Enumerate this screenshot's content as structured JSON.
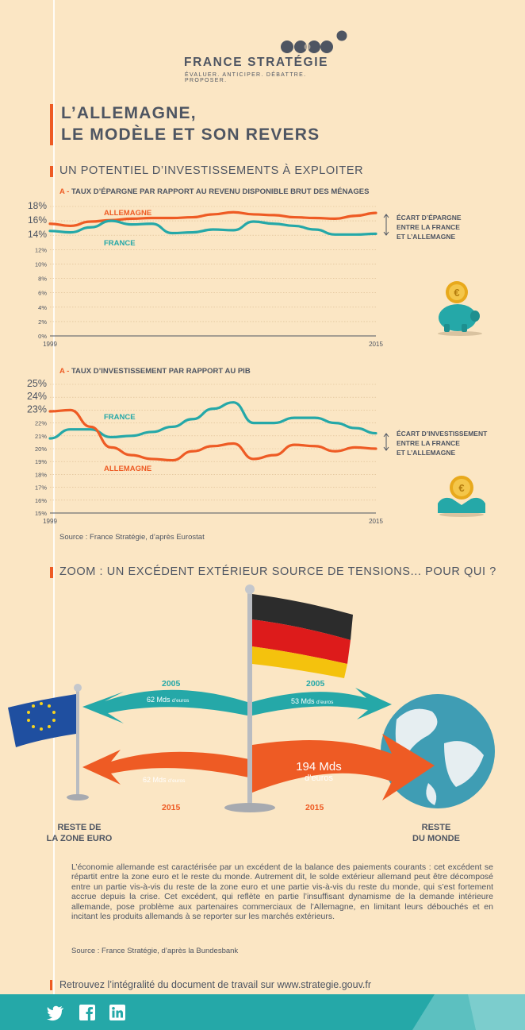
{
  "logo": {
    "name": "FRANCE STRATÉGIE",
    "tagline": "ÉVALUER. ANTICIPER. DÉBATTRE. PROPOSER."
  },
  "title": {
    "line1": "L’ALLEMAGNE,",
    "line2": "LE MODÈLE ET SON REVERS"
  },
  "section1": {
    "title": "UN POTENTIEL D’INVESTISSEMENTS À EXPLOITER"
  },
  "chart_data": [
    {
      "type": "line",
      "prefix": "A -",
      "title": "TAUX D’ÉPARGNE PAR RAPPORT AU REVENU DISPONIBLE BRUT DES MÉNAGES",
      "x_range": [
        1999,
        2015
      ],
      "x_tick_labels": [
        "1999",
        "2015"
      ],
      "y_range": [
        0,
        18
      ],
      "y_tick_labels": [
        "0%",
        "2%",
        "4%",
        "6%",
        "8%",
        "10%",
        "12%",
        "14%",
        "16%",
        "18%"
      ],
      "series": [
        {
          "name": "ALLEMAGNE",
          "color": "#ee5b24",
          "values": [
            15.6,
            15.3,
            15.9,
            16.1,
            16.3,
            16.4,
            16.4,
            16.5,
            16.9,
            17.2,
            16.9,
            16.8,
            16.5,
            16.4,
            16.3,
            16.7,
            17.1
          ]
        },
        {
          "name": "FRANCE",
          "color": "#25a8a8",
          "values": [
            14.6,
            14.4,
            15.1,
            16.0,
            15.5,
            15.6,
            14.3,
            14.4,
            14.8,
            14.7,
            15.9,
            15.6,
            15.3,
            14.8,
            14.1,
            14.1,
            14.2
          ]
        }
      ],
      "annotation": [
        "ÉCART D’ÉPARGNE",
        "ENTRE LA FRANCE",
        "ET L’ALLEMAGNE"
      ]
    },
    {
      "type": "line",
      "prefix": "A -",
      "title": "TAUX D’INVESTISSEMENT PAR RAPPORT AU PIB",
      "x_range": [
        1999,
        2015
      ],
      "x_tick_labels": [
        "1999",
        "2015"
      ],
      "y_range": [
        15,
        25
      ],
      "y_tick_labels": [
        "15%",
        "16%",
        "17%",
        "18%",
        "19%",
        "20%",
        "21%",
        "22%",
        "23%",
        "24%",
        "25%"
      ],
      "series": [
        {
          "name": "FRANCE",
          "color": "#25a8a8",
          "values": [
            20.8,
            21.5,
            21.5,
            20.9,
            21.0,
            21.3,
            21.7,
            22.3,
            23.1,
            23.6,
            22.0,
            22.0,
            22.4,
            22.4,
            22.0,
            21.6,
            21.2
          ]
        },
        {
          "name": "ALLEMAGNE",
          "color": "#ee5b24",
          "values": [
            22.9,
            23.0,
            21.7,
            20.1,
            19.5,
            19.2,
            19.1,
            19.8,
            20.2,
            20.4,
            19.2,
            19.5,
            20.3,
            20.2,
            19.8,
            20.1,
            20.0
          ]
        }
      ],
      "annotation": [
        "ÉCART D’INVESTISSEMENT",
        "ENTRE LA FRANCE",
        "ET L’ALLEMAGNE"
      ]
    }
  ],
  "source1": "Source : France Stratégie, d’après Eurostat",
  "section2": {
    "title": "ZOOM : UN EXCÉDENT EXTÉRIEUR SOURCE DE TENSIONS... POUR QUI ?",
    "flows": {
      "year_2005": "2005",
      "year_2015": "2015",
      "euro_2005_value": "62 Mds",
      "euro_2005_unit": "d’euros",
      "world_2005_value": "53 Mds",
      "world_2005_unit": "d’euros",
      "euro_2015_value": "62 Mds",
      "euro_2015_unit": "d’euros",
      "world_2015_value": "194 Mds",
      "world_2015_unit": "d’euros"
    },
    "left_place": {
      "line1": "RESTE DE",
      "line2": "LA ZONE EURO"
    },
    "right_place": {
      "line1": "RESTE",
      "line2": "DU MONDE"
    },
    "colors": {
      "orange": "#ee5b24",
      "teal": "#25a8a8"
    }
  },
  "paragraph": "L’économie allemande est caractérisée par un excédent de la balance des paiements courants : cet excédent se répartit entre la zone euro et le reste du monde. Autrement dit, le solde extérieur allemand peut être décomposé entre un partie vis-à-vis du reste de la zone euro et une partie vis-à-vis du reste du monde, qui s’est fortement accrue depuis la crise. Cet excédent, qui reflète en partie l’insuffisant dynamisme de la demande intérieure allemande, pose problème aux partenaires commerciaux de l’Allemagne, en limitant leurs débouchés et en incitant les produits allemands à se reporter sur les marchés extérieurs.",
  "source2": "Source : France Stratégie, d’après la Bundesbank",
  "footer": {
    "text": "Retrouvez l’intégralité du document de travail sur www.strategie.gouv.fr"
  },
  "social": [
    "twitter-icon",
    "facebook-icon",
    "linkedin-icon"
  ]
}
